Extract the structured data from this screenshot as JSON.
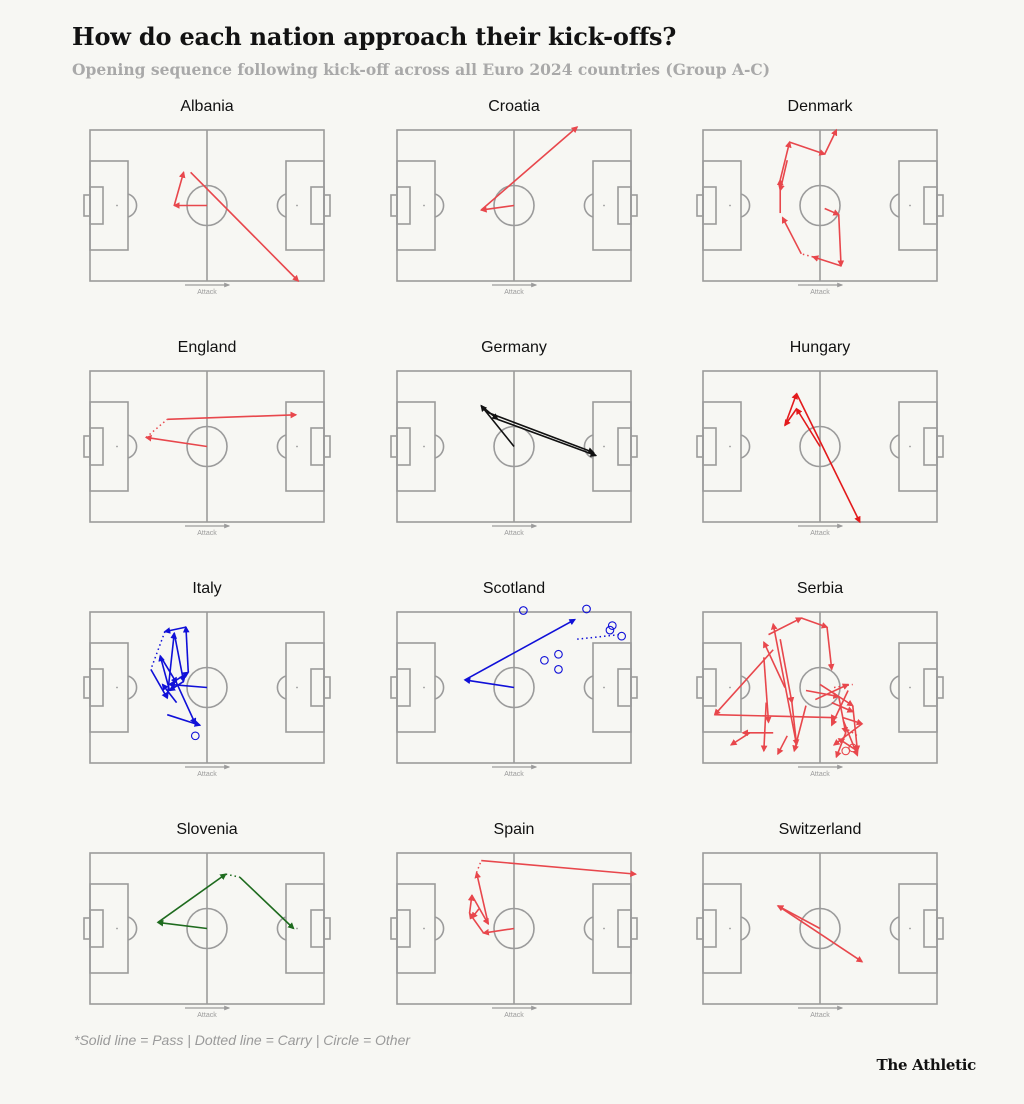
{
  "title": "How do each nation approach their kick-offs?",
  "subtitle": "Opening sequence following kick-off across all Euro 2024 countries (Group A-C)",
  "footnote": "*Solid line = Pass | Dotted line = Carry | Circle = Other",
  "brand": "The Athletic",
  "attack_label": "Attack",
  "chart_data": {
    "type": "pitch-event-map",
    "coordinate_note": "x,y on 0-100 pitch scale (x toward attacking goal, y top to bottom)",
    "legend": {
      "solid": "Pass",
      "dotted": "Carry",
      "circle": "Other"
    },
    "panels": [
      {
        "name": "Albania",
        "color": "#e8474c",
        "events": [
          {
            "type": "pass",
            "from": [
              50,
              50
            ],
            "to": [
              36,
              50
            ]
          },
          {
            "type": "pass",
            "from": [
              36,
              50
            ],
            "to": [
              40,
              28
            ]
          },
          {
            "type": "pass",
            "from": [
              43,
              28
            ],
            "to": [
              89,
              100
            ]
          }
        ]
      },
      {
        "name": "Croatia",
        "color": "#e8474c",
        "events": [
          {
            "type": "pass",
            "from": [
              50,
              50
            ],
            "to": [
              36,
              53
            ]
          },
          {
            "type": "pass",
            "from": [
              36,
              53
            ],
            "to": [
              77,
              -2
            ]
          }
        ]
      },
      {
        "name": "Denmark",
        "color": "#e8474c",
        "events": [
          {
            "type": "pass",
            "from": [
              52,
              52
            ],
            "to": [
              58,
              56
            ]
          },
          {
            "type": "pass",
            "from": [
              58,
              56
            ],
            "to": [
              59,
              90
            ]
          },
          {
            "type": "pass",
            "from": [
              59,
              90
            ],
            "to": [
              47,
              84
            ]
          },
          {
            "type": "carry",
            "from": [
              47,
              84
            ],
            "to": [
              42,
              82
            ]
          },
          {
            "type": "pass",
            "from": [
              42,
              82
            ],
            "to": [
              34,
              58
            ]
          },
          {
            "type": "pass",
            "from": [
              33,
              55
            ],
            "to": [
              33,
              33
            ]
          },
          {
            "type": "pass",
            "from": [
              33,
              33
            ],
            "to": [
              37,
              8
            ]
          },
          {
            "type": "pass",
            "from": [
              37,
              8
            ],
            "to": [
              52,
              16
            ]
          },
          {
            "type": "pass",
            "from": [
              52,
              16
            ],
            "to": [
              57,
              0
            ]
          },
          {
            "type": "pass",
            "from": [
              36,
              20
            ],
            "to": [
              33,
              40
            ]
          }
        ]
      },
      {
        "name": "England",
        "color": "#e8474c",
        "events": [
          {
            "type": "pass",
            "from": [
              50,
              50
            ],
            "to": [
              24,
              44
            ]
          },
          {
            "type": "carry",
            "from": [
              24,
              44
            ],
            "to": [
              33,
              32
            ]
          },
          {
            "type": "pass",
            "from": [
              33,
              32
            ],
            "to": [
              88,
              29
            ]
          }
        ]
      },
      {
        "name": "Germany",
        "color": "#111111",
        "events": [
          {
            "type": "pass",
            "from": [
              50,
              50
            ],
            "to": [
              36,
              23
            ]
          },
          {
            "type": "pass",
            "from": [
              36,
              23
            ],
            "to": [
              43,
              32
            ]
          },
          {
            "type": "pass",
            "from": [
              43,
              32
            ],
            "to": [
              85,
              56
            ]
          },
          {
            "type": "pass",
            "from": [
              38,
              27
            ],
            "to": [
              84,
              54
            ]
          }
        ]
      },
      {
        "name": "Hungary",
        "color": "#e31a1c",
        "events": [
          {
            "type": "pass",
            "from": [
              50,
              50
            ],
            "to": [
              40,
              25
            ]
          },
          {
            "type": "pass",
            "from": [
              40,
              25
            ],
            "to": [
              35,
              36
            ]
          },
          {
            "type": "pass",
            "from": [
              35,
              36
            ],
            "to": [
              40,
              15
            ]
          },
          {
            "type": "pass",
            "from": [
              40,
              15
            ],
            "to": [
              67,
              100
            ]
          }
        ]
      },
      {
        "name": "Italy",
        "color": "#1010d8",
        "events": [
          {
            "type": "pass",
            "from": [
              50,
              50
            ],
            "to": [
              34,
              48
            ]
          },
          {
            "type": "pass",
            "from": [
              34,
              48
            ],
            "to": [
              42,
              40
            ]
          },
          {
            "type": "pass",
            "from": [
              42,
              40
            ],
            "to": [
              41,
              10
            ]
          },
          {
            "type": "pass",
            "from": [
              41,
              10
            ],
            "to": [
              32,
              13
            ]
          },
          {
            "type": "carry",
            "from": [
              32,
              13
            ],
            "to": [
              26,
              38
            ]
          },
          {
            "type": "pass",
            "from": [
              26,
              38
            ],
            "to": [
              33,
              57
            ]
          },
          {
            "type": "pass",
            "from": [
              33,
              57
            ],
            "to": [
              36,
              14
            ]
          },
          {
            "type": "pass",
            "from": [
              36,
              14
            ],
            "to": [
              40,
              46
            ]
          },
          {
            "type": "pass",
            "from": [
              40,
              46
            ],
            "to": [
              34,
              52
            ]
          },
          {
            "type": "pass",
            "from": [
              34,
              52
            ],
            "to": [
              30,
              29
            ]
          },
          {
            "type": "pass",
            "from": [
              30,
              29
            ],
            "to": [
              37,
              47
            ]
          },
          {
            "type": "pass",
            "from": [
              37,
              47
            ],
            "to": [
              45,
              74
            ]
          },
          {
            "type": "pass",
            "from": [
              37,
              60
            ],
            "to": [
              31,
              48
            ]
          },
          {
            "type": "pass",
            "from": [
              33,
              68
            ],
            "to": [
              47,
              75
            ]
          },
          {
            "type": "other",
            "at": [
              45,
              82
            ]
          }
        ]
      },
      {
        "name": "Scotland",
        "color": "#1010d8",
        "events": [
          {
            "type": "pass",
            "from": [
              50,
              50
            ],
            "to": [
              29,
              45
            ]
          },
          {
            "type": "pass",
            "from": [
              29,
              45
            ],
            "to": [
              76,
              5
            ]
          },
          {
            "type": "other",
            "at": [
              54,
              -1
            ]
          },
          {
            "type": "other",
            "at": [
              81,
              -2
            ]
          },
          {
            "type": "other",
            "at": [
              92,
              9
            ]
          },
          {
            "type": "other",
            "at": [
              91,
              12
            ]
          },
          {
            "type": "other",
            "at": [
              96,
              16
            ]
          },
          {
            "type": "carry",
            "from": [
              77,
              18
            ],
            "to": [
              95,
              15
            ]
          },
          {
            "type": "other",
            "at": [
              69,
              28
            ]
          },
          {
            "type": "other",
            "at": [
              63,
              32
            ]
          },
          {
            "type": "other",
            "at": [
              69,
              38
            ]
          }
        ]
      },
      {
        "name": "Serbia",
        "color": "#e8474c",
        "events": [
          {
            "type": "pass",
            "from": [
              30,
              25
            ],
            "to": [
              5,
              68
            ]
          },
          {
            "type": "pass",
            "from": [
              5,
              68
            ],
            "to": [
              57,
              70
            ]
          },
          {
            "type": "pass",
            "from": [
              30,
              80
            ],
            "to": [
              17,
              80
            ]
          },
          {
            "type": "pass",
            "from": [
              27,
              60
            ],
            "to": [
              26,
              92
            ]
          },
          {
            "type": "pass",
            "from": [
              33,
              18
            ],
            "to": [
              38,
              60
            ]
          },
          {
            "type": "pass",
            "from": [
              38,
              60
            ],
            "to": [
              40,
              88
            ]
          },
          {
            "type": "pass",
            "from": [
              40,
              88
            ],
            "to": [
              30,
              8
            ]
          },
          {
            "type": "pass",
            "from": [
              26,
              30
            ],
            "to": [
              28,
              73
            ]
          },
          {
            "type": "pass",
            "from": [
              35,
              50
            ],
            "to": [
              26,
              20
            ]
          },
          {
            "type": "pass",
            "from": [
              28,
              15
            ],
            "to": [
              42,
              4
            ]
          },
          {
            "type": "pass",
            "from": [
              42,
              4
            ],
            "to": [
              53,
              10
            ]
          },
          {
            "type": "pass",
            "from": [
              53,
              10
            ],
            "to": [
              55,
              38
            ]
          },
          {
            "type": "pass",
            "from": [
              44,
              52
            ],
            "to": [
              58,
              56
            ]
          },
          {
            "type": "pass",
            "from": [
              58,
              56
            ],
            "to": [
              61,
              80
            ]
          },
          {
            "type": "pass",
            "from": [
              61,
              80
            ],
            "to": [
              57,
              96
            ]
          },
          {
            "type": "pass",
            "from": [
              50,
              48
            ],
            "to": [
              64,
              62
            ]
          },
          {
            "type": "pass",
            "from": [
              64,
              62
            ],
            "to": [
              66,
              92
            ]
          },
          {
            "type": "pass",
            "from": [
              66,
              92
            ],
            "to": [
              58,
              84
            ]
          },
          {
            "type": "pass",
            "from": [
              60,
              70
            ],
            "to": [
              68,
              74
            ]
          },
          {
            "type": "pass",
            "from": [
              68,
              74
            ],
            "to": [
              56,
              88
            ]
          },
          {
            "type": "pass",
            "from": [
              55,
              60
            ],
            "to": [
              64,
              66
            ]
          },
          {
            "type": "pass",
            "from": [
              62,
              52
            ],
            "to": [
              55,
              75
            ]
          },
          {
            "type": "pass",
            "from": [
              60,
              72
            ],
            "to": [
              66,
              95
            ]
          },
          {
            "type": "pass",
            "from": [
              48,
              58
            ],
            "to": [
              62,
              48
            ]
          },
          {
            "type": "pass",
            "from": [
              44,
              62
            ],
            "to": [
              39,
              92
            ]
          },
          {
            "type": "pass",
            "from": [
              36,
              82
            ],
            "to": [
              32,
              94
            ]
          },
          {
            "type": "pass",
            "from": [
              20,
              80
            ],
            "to": [
              12,
              88
            ]
          },
          {
            "type": "carry",
            "from": [
              56,
              50
            ],
            "to": [
              64,
              48
            ]
          },
          {
            "type": "carry",
            "from": [
              62,
              78
            ],
            "to": [
              66,
              82
            ]
          },
          {
            "type": "other",
            "at": [
              64,
              90
            ]
          },
          {
            "type": "other",
            "at": [
              61,
              92
            ]
          }
        ]
      },
      {
        "name": "Slovenia",
        "color": "#1e6b1e",
        "events": [
          {
            "type": "pass",
            "from": [
              50,
              50
            ],
            "to": [
              29,
              46
            ]
          },
          {
            "type": "pass",
            "from": [
              29,
              46
            ],
            "to": [
              58,
              14
            ]
          },
          {
            "type": "carry",
            "from": [
              58,
              14
            ],
            "to": [
              64,
              16
            ]
          },
          {
            "type": "pass",
            "from": [
              64,
              16
            ],
            "to": [
              87,
              50
            ]
          }
        ]
      },
      {
        "name": "Spain",
        "color": "#e8474c",
        "events": [
          {
            "type": "pass",
            "from": [
              50,
              50
            ],
            "to": [
              37,
              53
            ]
          },
          {
            "type": "pass",
            "from": [
              37,
              53
            ],
            "to": [
              31,
              40
            ]
          },
          {
            "type": "pass",
            "from": [
              31,
              40
            ],
            "to": [
              32,
              28
            ]
          },
          {
            "type": "pass",
            "from": [
              32,
              28
            ],
            "to": [
              39,
              47
            ]
          },
          {
            "type": "pass",
            "from": [
              39,
              47
            ],
            "to": [
              34,
              13
            ]
          },
          {
            "type": "carry",
            "from": [
              34,
              13
            ],
            "to": [
              36,
              5
            ]
          },
          {
            "type": "pass",
            "from": [
              36,
              5
            ],
            "to": [
              102,
              14
            ]
          },
          {
            "type": "pass",
            "from": [
              35,
              37
            ],
            "to": [
              32,
              43
            ]
          }
        ]
      },
      {
        "name": "Switzerland",
        "color": "#e8474c",
        "events": [
          {
            "type": "pass",
            "from": [
              50,
              50
            ],
            "to": [
              32,
              35
            ]
          },
          {
            "type": "pass",
            "from": [
              32,
              35
            ],
            "to": [
              68,
              72
            ]
          }
        ]
      }
    ]
  }
}
